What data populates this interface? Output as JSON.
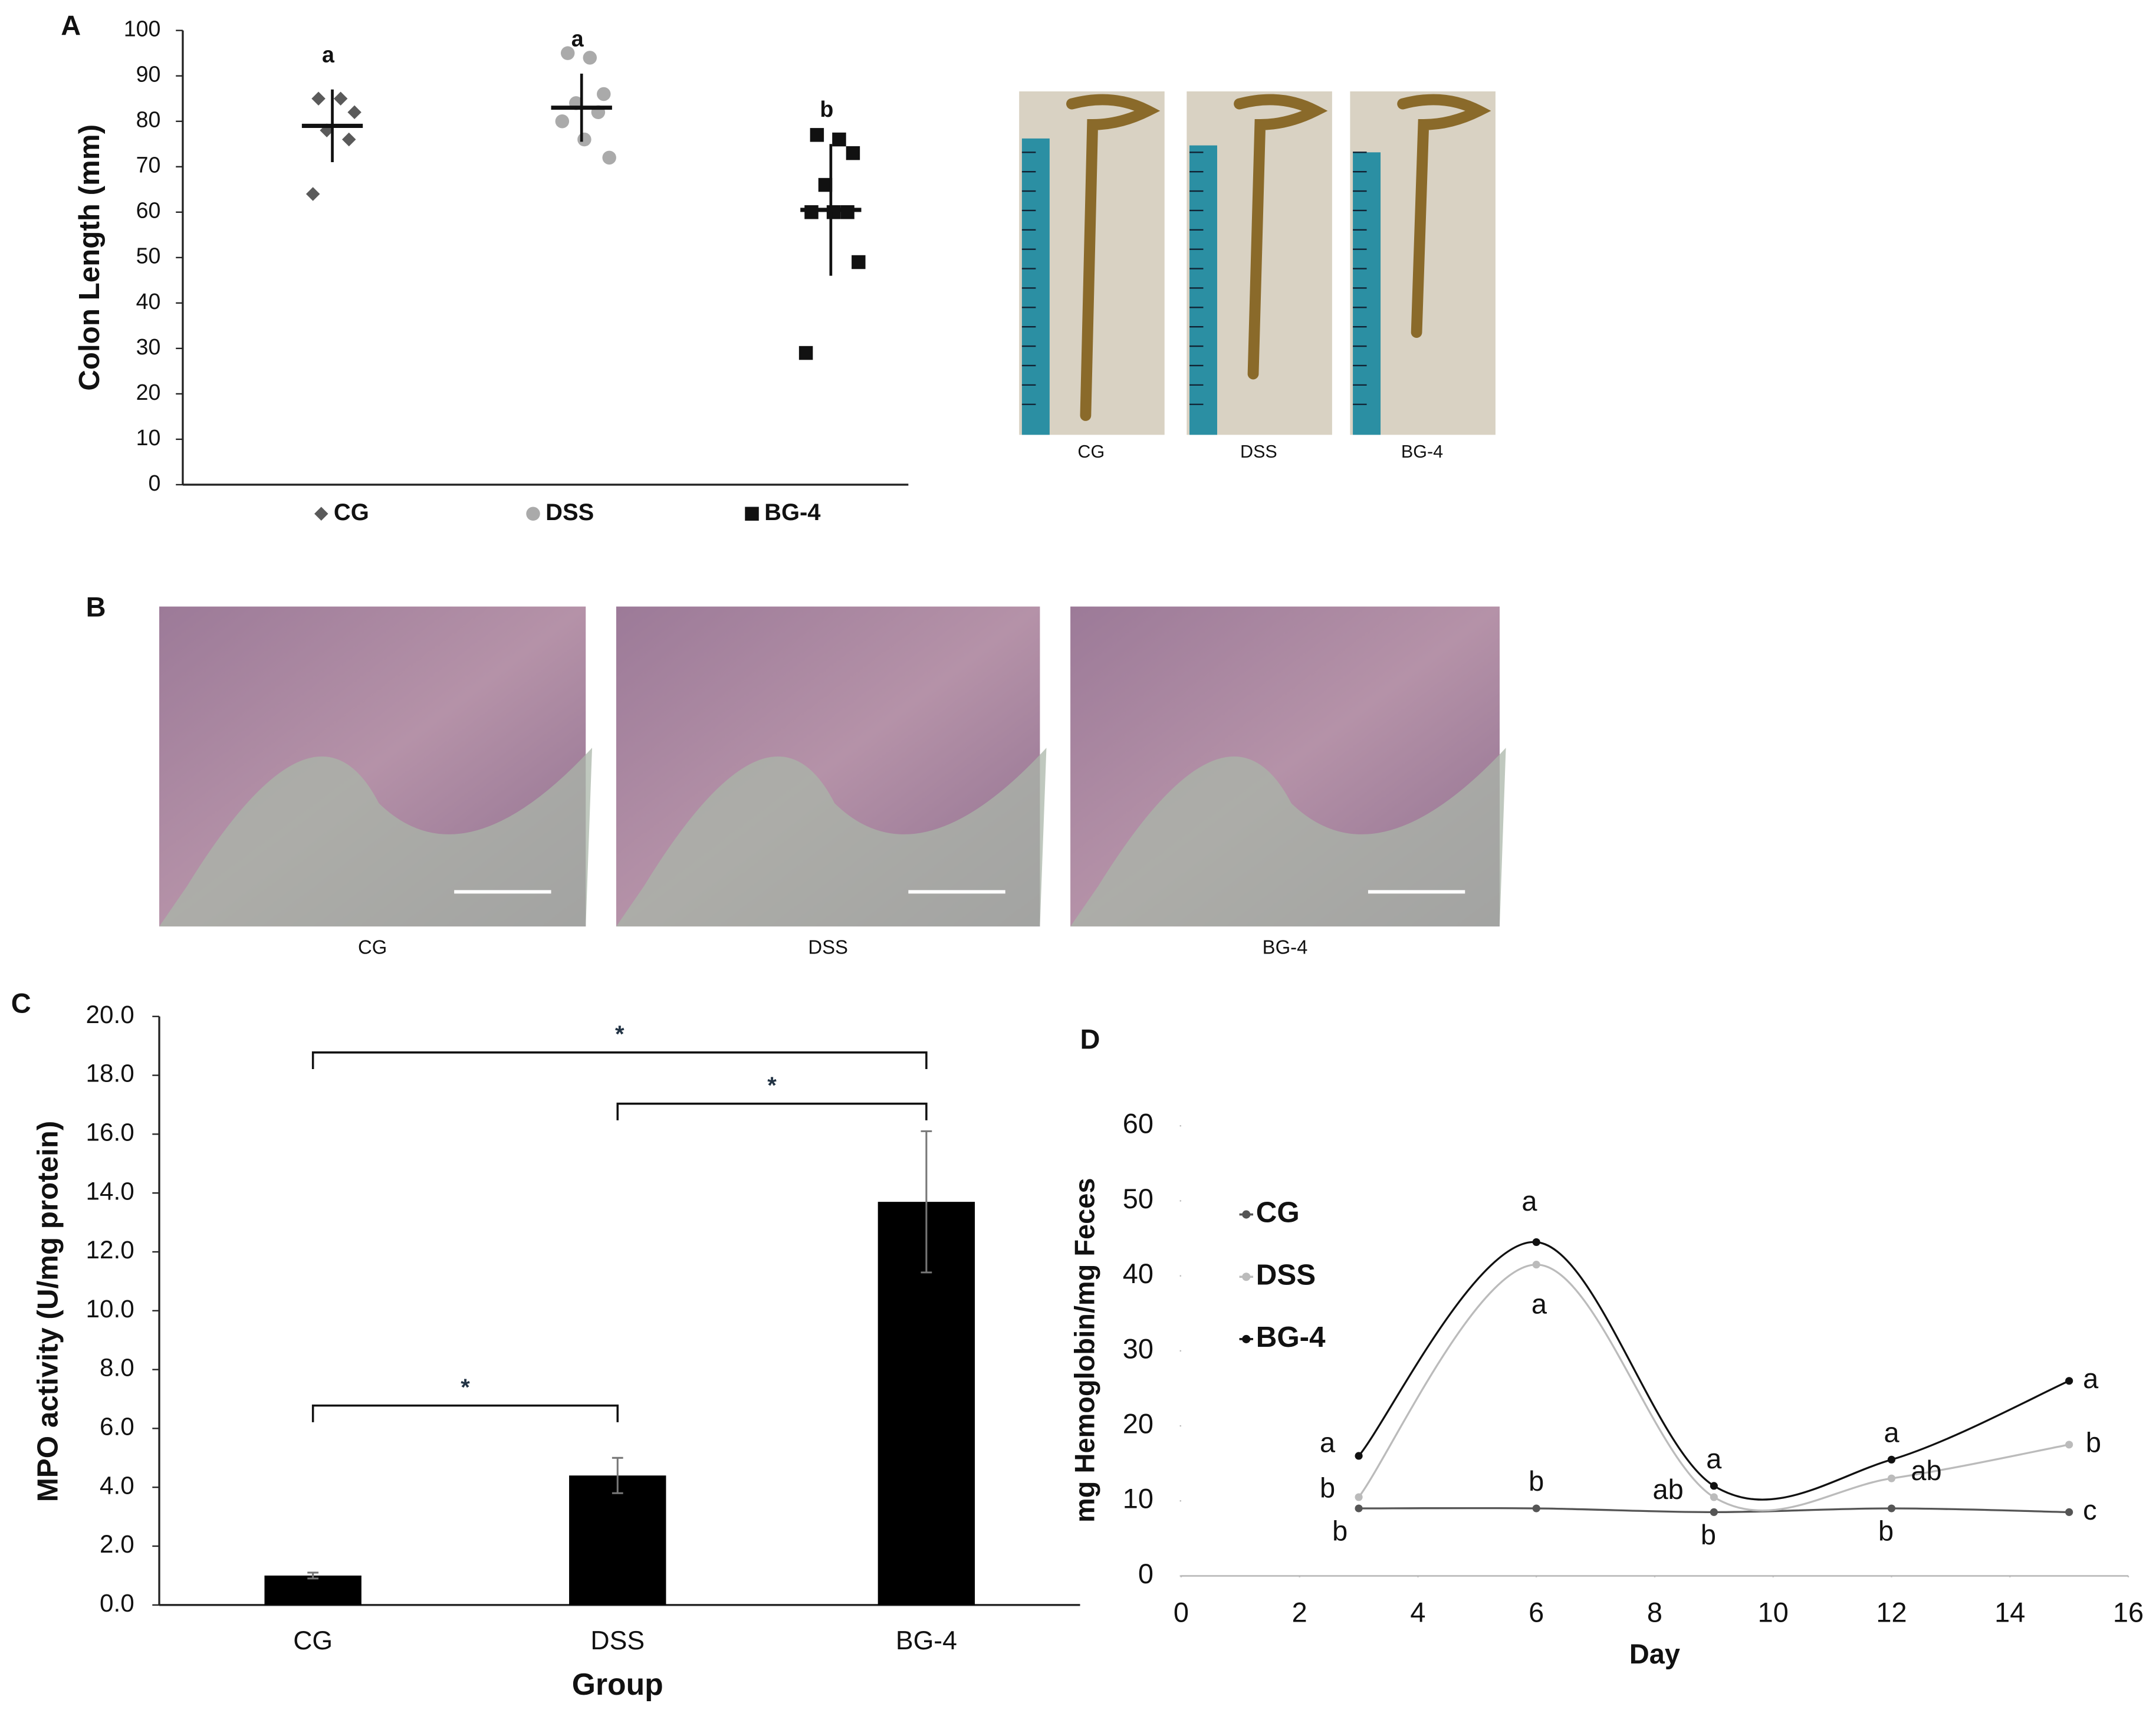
{
  "photos": {
    "captions": [
      "CG",
      "DSS",
      "BG-4"
    ]
  },
  "histology": {
    "panel": "B",
    "captions": [
      "CG",
      "DSS",
      "BG-4"
    ]
  },
  "chart_data": [
    {
      "type": "strip",
      "panel": "A",
      "y_label": "Colon Length (mm)",
      "ylim": [
        0,
        100
      ],
      "yticks": [
        0,
        10,
        20,
        30,
        40,
        50,
        60,
        70,
        80,
        90,
        100
      ],
      "series": [
        {
          "name": "CG",
          "color": "#5a5a5a",
          "marker": "diamond",
          "values": [
            85,
            85,
            82,
            78,
            76,
            64
          ],
          "mean": 79,
          "error": 8,
          "letter": "a"
        },
        {
          "name": "DSS",
          "color": "#aaaaaa",
          "marker": "circle",
          "values": [
            95,
            94,
            86,
            84,
            82,
            80,
            76,
            72
          ],
          "mean": 83,
          "error": 7.5,
          "letter": "a"
        },
        {
          "name": "BG-4",
          "color": "#111111",
          "marker": "square",
          "values": [
            77,
            76,
            73,
            66,
            60,
            60,
            60,
            49,
            29
          ],
          "mean": 60.5,
          "error": 14.5,
          "letter": "b"
        }
      ]
    },
    {
      "type": "bar",
      "panel": "C",
      "categories": [
        "CG",
        "DSS",
        "BG-4"
      ],
      "values": [
        1.0,
        4.4,
        13.7
      ],
      "errors": [
        0.1,
        0.6,
        2.4
      ],
      "color": "#000000",
      "x_label": "Group",
      "y_label": "MPO activity (U/mg protein)",
      "ylim": [
        0,
        20
      ],
      "yticks": [
        {
          "value": 0,
          "label": "0.0"
        },
        {
          "value": 2,
          "label": "2.0"
        },
        {
          "value": 4,
          "label": "4.0"
        },
        {
          "value": 6,
          "label": "6.0"
        },
        {
          "value": 8,
          "label": "8.0"
        },
        {
          "value": 10,
          "label": "10.0"
        },
        {
          "value": 12,
          "label": "12.0"
        },
        {
          "value": 14,
          "label": "14.0"
        },
        {
          "value": 16,
          "label": "16.0"
        },
        {
          "value": 18,
          "label": "18.0"
        },
        {
          "value": 20,
          "label": "20.0"
        }
      ],
      "comparisons": [
        {
          "between": [
            0,
            2
          ],
          "label": "*"
        },
        {
          "between": [
            1,
            2
          ],
          "label": "*"
        },
        {
          "between": [
            0,
            1
          ],
          "label": "*"
        }
      ]
    },
    {
      "type": "line",
      "panel": "D",
      "x": [
        3,
        6,
        9,
        12,
        15
      ],
      "x_label": "Day",
      "y_label": "mg Hemoglobin/mg Feces",
      "xlim": [
        0,
        16
      ],
      "xticks": [
        0,
        2,
        4,
        6,
        8,
        10,
        12,
        14,
        16
      ],
      "ylim": [
        0,
        60
      ],
      "yticks": [
        0,
        10,
        20,
        30,
        40,
        50,
        60
      ],
      "series": [
        {
          "name": "CG",
          "color": "#555555",
          "values": [
            9,
            9,
            8.5,
            9,
            8.5
          ],
          "letters": [
            "b",
            "b",
            "b",
            "b",
            "c"
          ]
        },
        {
          "name": "DSS",
          "color": "#bbbbbb",
          "values": [
            10.5,
            41.5,
            10.5,
            13,
            17.5
          ],
          "letters": [
            "b",
            "a",
            "ab",
            "ab",
            "b"
          ]
        },
        {
          "name": "BG-4",
          "color": "#111111",
          "values": [
            16,
            44.5,
            12,
            15.5,
            26
          ],
          "letters": [
            "a",
            "a",
            "a",
            "a",
            "a"
          ]
        }
      ]
    }
  ]
}
